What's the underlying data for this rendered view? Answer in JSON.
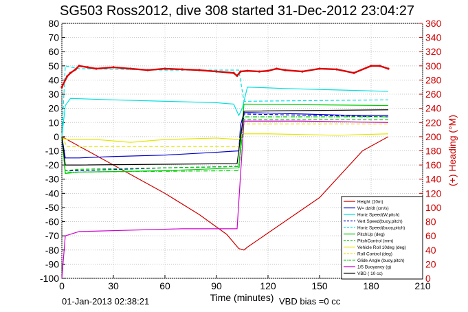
{
  "chart_data": {
    "type": "line",
    "title": "SG503 Ross2012, dive 308 started 31-Dec-2012 23:04:27",
    "xlabel": "Time (minutes)",
    "ylabel": "",
    "ylabel_right": "(+) Heading (°M)",
    "xlim": [
      0,
      210
    ],
    "ylim": [
      -100,
      80
    ],
    "ylim_right": [
      0,
      360
    ],
    "x_ticks": [
      0,
      30,
      60,
      90,
      120,
      150,
      180,
      210
    ],
    "y_ticks": [
      -100,
      -90,
      -80,
      -70,
      -60,
      -50,
      -40,
      -30,
      -20,
      -10,
      0,
      10,
      20,
      30,
      40,
      50,
      60,
      70,
      80
    ],
    "y_ticks_right": [
      0,
      20,
      40,
      60,
      80,
      100,
      120,
      140,
      160,
      180,
      200,
      220,
      240,
      260,
      280,
      300,
      320,
      340,
      360
    ],
    "grid": true,
    "legend_position": "bottom-right",
    "footer_left": "01-Jan-2013 02:38:21",
    "footer_right": "VBD bias =0 cc",
    "series": [
      {
        "name": "Height (10m)",
        "color": "#cc0000",
        "style": "solid",
        "x": [
          0,
          30,
          60,
          80,
          96,
          103,
          106,
          108,
          120,
          150,
          175,
          190
        ],
        "y": [
          0,
          -20,
          -40,
          -55,
          -69,
          -79,
          -80,
          -78,
          -68,
          -43,
          -10,
          0
        ]
      },
      {
        "name": "W= dz/dt (cm/s)",
        "color": "#0000cc",
        "style": "solid",
        "x": [
          0,
          2,
          10,
          30,
          60,
          90,
          103,
          104,
          106,
          110,
          140,
          170,
          190
        ],
        "y": [
          0,
          -15,
          -15,
          -14,
          -13,
          -11,
          -10,
          8,
          17,
          17,
          16,
          15,
          15
        ]
      },
      {
        "name": "Horiz Speed(W,pitch)",
        "color": "#00e0e0",
        "style": "solid",
        "x": [
          0,
          2,
          5,
          30,
          60,
          90,
          100,
          103,
          105,
          108,
          130,
          160,
          190
        ],
        "y": [
          0,
          22,
          27,
          26,
          25,
          24,
          23,
          15,
          20,
          35,
          34,
          33,
          32
        ]
      },
      {
        "name": "Vert Speed(buoy,pitch)",
        "color": "#0000cc",
        "style": "dashed",
        "x": [
          0,
          2,
          10,
          60,
          103,
          106,
          190
        ],
        "y": [
          0,
          -24,
          -24,
          -22,
          -21,
          16,
          14
        ]
      },
      {
        "name": "Horiz Speed(buoy,pitch)",
        "color": "#00e0e0",
        "style": "dashed",
        "x": [
          0,
          2,
          10,
          60,
          103,
          106,
          190
        ],
        "y": [
          0,
          50,
          48,
          47,
          47,
          25,
          26
        ]
      },
      {
        "name": "PitchUp (deg)",
        "color": "#00cc00",
        "style": "solid",
        "x": [
          0,
          2,
          10,
          60,
          103,
          106,
          190
        ],
        "y": [
          0,
          -26,
          -25,
          -24,
          -22,
          23,
          22
        ]
      },
      {
        "name": "PitchControl (mm)",
        "color": "#00cc00",
        "style": "dashed",
        "x": [
          0,
          2,
          10,
          60,
          103,
          106,
          190
        ],
        "y": [
          0,
          -24,
          -23,
          -22,
          -21,
          12,
          12
        ]
      },
      {
        "name": "Vehicle Roll 10deg (deg)",
        "color": "#e6e600",
        "style": "solid",
        "x": [
          0,
          3,
          20,
          40,
          60,
          90,
          103,
          106,
          120,
          160,
          190
        ],
        "y": [
          -1,
          -2,
          -2,
          -4,
          -2,
          -1,
          -2,
          2,
          2,
          1,
          2
        ]
      },
      {
        "name": "Roll Control (deg)",
        "color": "#e6e600",
        "style": "dashed",
        "x": [
          0,
          3,
          103,
          106,
          190
        ],
        "y": [
          0,
          -7,
          -7,
          9,
          9
        ]
      },
      {
        "name": "Glide Angle (buoy,pitch)",
        "color": "#00cc00",
        "style": "dashdot",
        "x": [
          0,
          2,
          103,
          106,
          190
        ],
        "y": [
          0,
          -25,
          -24,
          14,
          14
        ]
      },
      {
        "name": "1/5 Buoyancy (g)",
        "color": "#cc00cc",
        "style": "solid",
        "x": [
          0,
          2,
          10,
          40,
          70,
          102,
          106,
          140,
          190
        ],
        "y": [
          -100,
          -70,
          -67,
          -66,
          -65,
          -65,
          11,
          11,
          10
        ]
      },
      {
        "name": "VBD ( 10 cc)",
        "color": "#000000",
        "style": "solid",
        "x": [
          0,
          2,
          10,
          102,
          106,
          190
        ],
        "y": [
          0,
          -20,
          -20,
          -19,
          18,
          19
        ]
      }
    ],
    "heading_series": {
      "axis": "right",
      "color": "#dd0000",
      "x": [
        0,
        3,
        5,
        8,
        10,
        15,
        20,
        30,
        40,
        50,
        60,
        70,
        80,
        90,
        100,
        102,
        104,
        108,
        115,
        120,
        125,
        130,
        140,
        150,
        160,
        170,
        180,
        185,
        190
      ],
      "y": [
        270,
        285,
        290,
        295,
        300,
        298,
        296,
        298,
        296,
        294,
        296,
        295,
        294,
        292,
        290,
        286,
        292,
        293,
        292,
        293,
        296,
        294,
        292,
        296,
        295,
        290,
        300,
        300,
        296
      ]
    }
  }
}
